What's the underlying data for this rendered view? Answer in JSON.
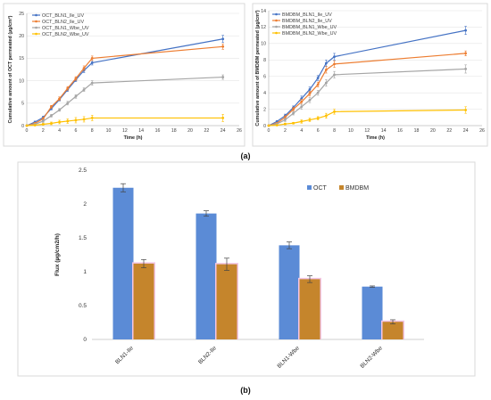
{
  "captions": {
    "a": "(a)",
    "b": "(b)"
  },
  "chart_data": [
    {
      "type": "line",
      "xlabel": "Time (h)",
      "ylabel": "Cumulative amount of OCT permeated (µg/cm²)",
      "xlim": [
        0,
        26
      ],
      "ylim": [
        0,
        25
      ],
      "xticks": [
        0,
        2,
        4,
        6,
        8,
        10,
        12,
        14,
        16,
        18,
        20,
        22,
        24,
        26
      ],
      "yticks": [
        0,
        5,
        10,
        15,
        20,
        25
      ],
      "grid": true,
      "legend_position": "top-left",
      "x": [
        0,
        1,
        2,
        3,
        4,
        5,
        6,
        7,
        8,
        24
      ],
      "series": [
        {
          "name": "OCT_BLN1_Ile_UV",
          "color": "#4472c4",
          "values": [
            0,
            0.8,
            1.8,
            3.8,
            5.8,
            8.0,
            10.2,
            12.3,
            14.0,
            19.3
          ],
          "errors": [
            0,
            0.2,
            0.3,
            0.3,
            0.3,
            0.4,
            0.4,
            0.5,
            0.5,
            0.8
          ]
        },
        {
          "name": "OCT_BLN2_Ile_UV",
          "color": "#ed7d31",
          "values": [
            0,
            0.5,
            1.5,
            4.2,
            6.0,
            8.3,
            10.5,
            12.8,
            15.0,
            17.6
          ],
          "errors": [
            0,
            0.2,
            0.3,
            0.3,
            0.4,
            0.4,
            0.4,
            0.5,
            0.5,
            0.6
          ]
        },
        {
          "name": "OCT_BLN1_Wbe_UV",
          "color": "#a5a5a5",
          "values": [
            0,
            0.3,
            1.0,
            2.2,
            3.5,
            5.0,
            6.5,
            8.0,
            9.5,
            10.8
          ],
          "errors": [
            0,
            0.2,
            0.3,
            0.3,
            0.3,
            0.4,
            0.4,
            0.4,
            0.5,
            0.5
          ]
        },
        {
          "name": "OCT_BLN2_Wbe_UV",
          "color": "#ffc000",
          "values": [
            0,
            0.1,
            0.3,
            0.5,
            0.8,
            1.0,
            1.2,
            1.4,
            1.7,
            1.7
          ],
          "errors": [
            0,
            0.1,
            0.2,
            0.3,
            0.4,
            0.5,
            0.6,
            0.6,
            0.6,
            0.8
          ]
        }
      ]
    },
    {
      "type": "line",
      "xlabel": "Time (h)",
      "ylabel": "Cumulative amount of BMDBM permeated (µg/cm²)",
      "xlim": [
        0,
        26
      ],
      "ylim": [
        0,
        14
      ],
      "xticks": [
        0,
        2,
        4,
        6,
        8,
        10,
        12,
        14,
        16,
        18,
        20,
        22,
        24,
        26
      ],
      "yticks": [
        0,
        2,
        4,
        6,
        8,
        10,
        12,
        14
      ],
      "grid": true,
      "legend_position": "top-left",
      "x": [
        0,
        1,
        2,
        3,
        4,
        5,
        6,
        7,
        8,
        24
      ],
      "series": [
        {
          "name": "BMDBM_BLN1_Ile_UV",
          "color": "#4472c4",
          "values": [
            0,
            0.5,
            1.2,
            2.2,
            3.3,
            4.4,
            5.8,
            7.6,
            8.4,
            11.6
          ],
          "errors": [
            0,
            0.1,
            0.2,
            0.2,
            0.3,
            0.3,
            0.3,
            0.4,
            0.4,
            0.5
          ]
        },
        {
          "name": "BMDBM_BLN2_Ile_UV",
          "color": "#ed7d31",
          "values": [
            0,
            0.3,
            1.0,
            2.0,
            2.9,
            3.9,
            5.0,
            6.8,
            7.5,
            8.8
          ],
          "errors": [
            0,
            0.1,
            0.2,
            0.2,
            0.3,
            0.3,
            0.3,
            0.4,
            0.4,
            0.3
          ]
        },
        {
          "name": "BMDBM_BLN1_Wbe_UV",
          "color": "#a5a5a5",
          "values": [
            0,
            0.2,
            0.7,
            1.5,
            2.3,
            3.1,
            4.0,
            5.2,
            6.2,
            6.9
          ],
          "errors": [
            0,
            0.1,
            0.2,
            0.2,
            0.3,
            0.3,
            0.3,
            0.4,
            0.4,
            0.5
          ]
        },
        {
          "name": "BMDBM_BLN2_Wbe_UV",
          "color": "#ffc000",
          "values": [
            0,
            0.05,
            0.2,
            0.3,
            0.5,
            0.7,
            0.9,
            1.2,
            1.7,
            1.9
          ],
          "errors": [
            0,
            0.05,
            0.1,
            0.1,
            0.2,
            0.2,
            0.2,
            0.3,
            0.3,
            0.4
          ]
        }
      ]
    },
    {
      "type": "bar",
      "xlabel": "",
      "ylabel": "Flux (µg/cm2/h)",
      "ylim": [
        0,
        2.5
      ],
      "yticks": [
        0,
        0.5,
        1,
        1.5,
        2,
        2.5
      ],
      "yticklabels": [
        "0",
        "0.5",
        "1",
        "1.5",
        "2",
        "2.5"
      ],
      "grid": false,
      "legend_position": "top-center",
      "categories": [
        "BLN1-Ile",
        "BLN2-Ile",
        "BLN1-Wbe",
        "BLN2-Wbe"
      ],
      "series": [
        {
          "name": "OCT",
          "color": "#5b8bd6",
          "values": [
            2.24,
            1.86,
            1.39,
            0.78
          ],
          "errors": [
            0.06,
            0.04,
            0.05,
            0.01
          ]
        },
        {
          "name": "BMDBM",
          "color": "#c5852c",
          "values": [
            1.12,
            1.11,
            0.89,
            0.26
          ],
          "errors": [
            0.06,
            0.09,
            0.05,
            0.03
          ]
        }
      ]
    }
  ]
}
